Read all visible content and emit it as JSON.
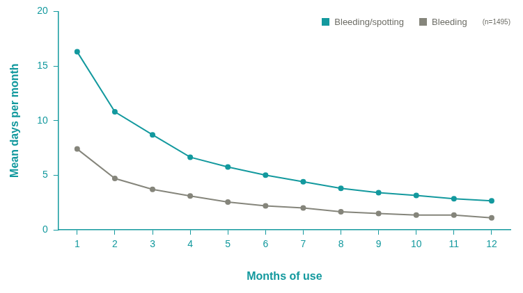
{
  "chart_data": {
    "type": "line",
    "x_label": "Months of use",
    "y_label": "Mean days per month",
    "categories": [
      "1",
      "2",
      "3",
      "4",
      "5",
      "6",
      "7",
      "8",
      "9",
      "10",
      "11",
      "12"
    ],
    "series": [
      {
        "name": "Bleeding/spotting",
        "color": "#13999e",
        "values": [
          16.3,
          10.8,
          8.7,
          6.65,
          5.75,
          5.0,
          4.4,
          3.8,
          3.4,
          3.15,
          2.85,
          2.65
        ]
      },
      {
        "name": "Bleeding",
        "color": "#85857b",
        "values": [
          7.4,
          4.7,
          3.7,
          3.1,
          2.55,
          2.2,
          2.0,
          1.65,
          1.5,
          1.35,
          1.35,
          1.1
        ]
      }
    ],
    "annotations": [
      "(n=1495)"
    ],
    "ylim": [
      0,
      20
    ],
    "yticks": [
      0,
      5,
      10,
      15,
      20
    ],
    "grid": false,
    "legend": "upper right",
    "marker": "circle",
    "line_style": "solid"
  }
}
